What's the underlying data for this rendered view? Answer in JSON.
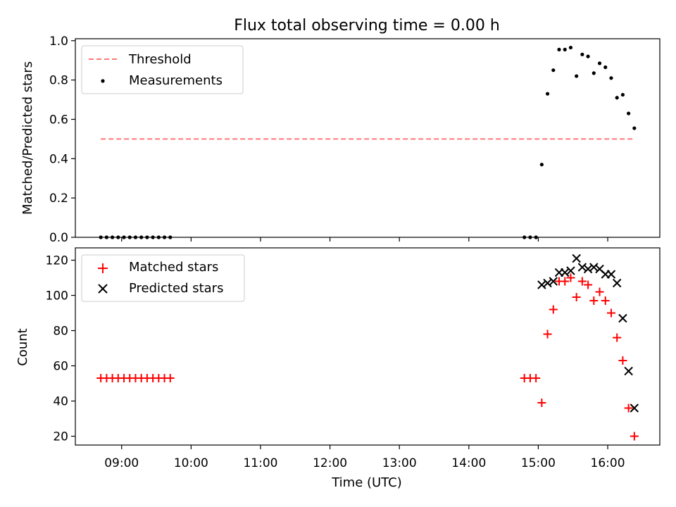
{
  "title": "Flux total observing time = 0.00 h",
  "chart_data": [
    {
      "type": "line",
      "ylabel": "Matched/Predicted stars",
      "xlabel": "",
      "xlim": [
        "08:20",
        "16:45"
      ],
      "ylim": [
        0,
        1.01
      ],
      "yticks": [
        0.0,
        0.2,
        0.4,
        0.6,
        0.8,
        1.0
      ],
      "ytick_labels": [
        "0.0",
        "0.2",
        "0.4",
        "0.6",
        "0.8",
        "1.0"
      ],
      "legend_position": "top-left",
      "series": [
        {
          "name": "Threshold",
          "kind": "dashed-line",
          "color": "#ff7777",
          "x": [
            "08:42",
            "16:23"
          ],
          "y": [
            0.5,
            0.5
          ]
        },
        {
          "name": "Measurements",
          "kind": "scatter",
          "color": "#000000",
          "x": [
            "08:42",
            "08:47",
            "08:52",
            "08:57",
            "09:02",
            "09:07",
            "09:12",
            "09:17",
            "09:22",
            "09:27",
            "09:32",
            "09:37",
            "09:42",
            "14:48",
            "14:53",
            "14:58",
            "15:03",
            "15:08",
            "15:13",
            "15:18",
            "15:23",
            "15:28",
            "15:33",
            "15:38",
            "15:43",
            "15:48",
            "15:53",
            "15:58",
            "16:03",
            "16:08",
            "16:13",
            "16:18",
            "16:23"
          ],
          "y": [
            0,
            0,
            0,
            0,
            0,
            0,
            0,
            0,
            0,
            0,
            0,
            0,
            0,
            0,
            0,
            0,
            0.37,
            0.73,
            0.85,
            0.955,
            0.955,
            0.965,
            0.82,
            0.93,
            0.92,
            0.835,
            0.885,
            0.865,
            0.81,
            0.71,
            0.725,
            0.63,
            0.555
          ]
        }
      ]
    },
    {
      "type": "scatter",
      "ylabel": "Count",
      "xlabel": "Time (UTC)",
      "xlim": [
        "08:20",
        "16:45"
      ],
      "ylim": [
        15,
        127
      ],
      "xticks": [
        "09:00",
        "10:00",
        "11:00",
        "12:00",
        "13:00",
        "14:00",
        "15:00",
        "16:00"
      ],
      "yticks": [
        20,
        40,
        60,
        80,
        100,
        120
      ],
      "legend_position": "top-left",
      "series": [
        {
          "name": "Matched stars",
          "marker": "plus",
          "color": "#ff0000",
          "x": [
            "08:42",
            "08:47",
            "08:52",
            "08:57",
            "09:02",
            "09:07",
            "09:12",
            "09:17",
            "09:22",
            "09:27",
            "09:32",
            "09:37",
            "09:42",
            "14:48",
            "14:53",
            "14:58",
            "15:03",
            "15:08",
            "15:13",
            "15:18",
            "15:23",
            "15:28",
            "15:33",
            "15:38",
            "15:43",
            "15:48",
            "15:53",
            "15:58",
            "16:03",
            "16:08",
            "16:13",
            "16:18",
            "16:23"
          ],
          "y": [
            53,
            53,
            53,
            53,
            53,
            53,
            53,
            53,
            53,
            53,
            53,
            53,
            53,
            53,
            53,
            53,
            39,
            78,
            92,
            108,
            108,
            110,
            99,
            108,
            106,
            97,
            102,
            97,
            90,
            76,
            63,
            36,
            20
          ]
        },
        {
          "name": "Predicted stars",
          "marker": "x",
          "color": "#000000",
          "x": [
            "15:03",
            "15:08",
            "15:13",
            "15:18",
            "15:23",
            "15:28",
            "15:33",
            "15:38",
            "15:43",
            "15:48",
            "15:53",
            "15:58",
            "16:03",
            "16:08",
            "16:13",
            "16:18",
            "16:23"
          ],
          "y": [
            106,
            107,
            108,
            113,
            113,
            114,
            121,
            116,
            115,
            116,
            115,
            112,
            112,
            107,
            87,
            57,
            36
          ]
        }
      ]
    }
  ]
}
